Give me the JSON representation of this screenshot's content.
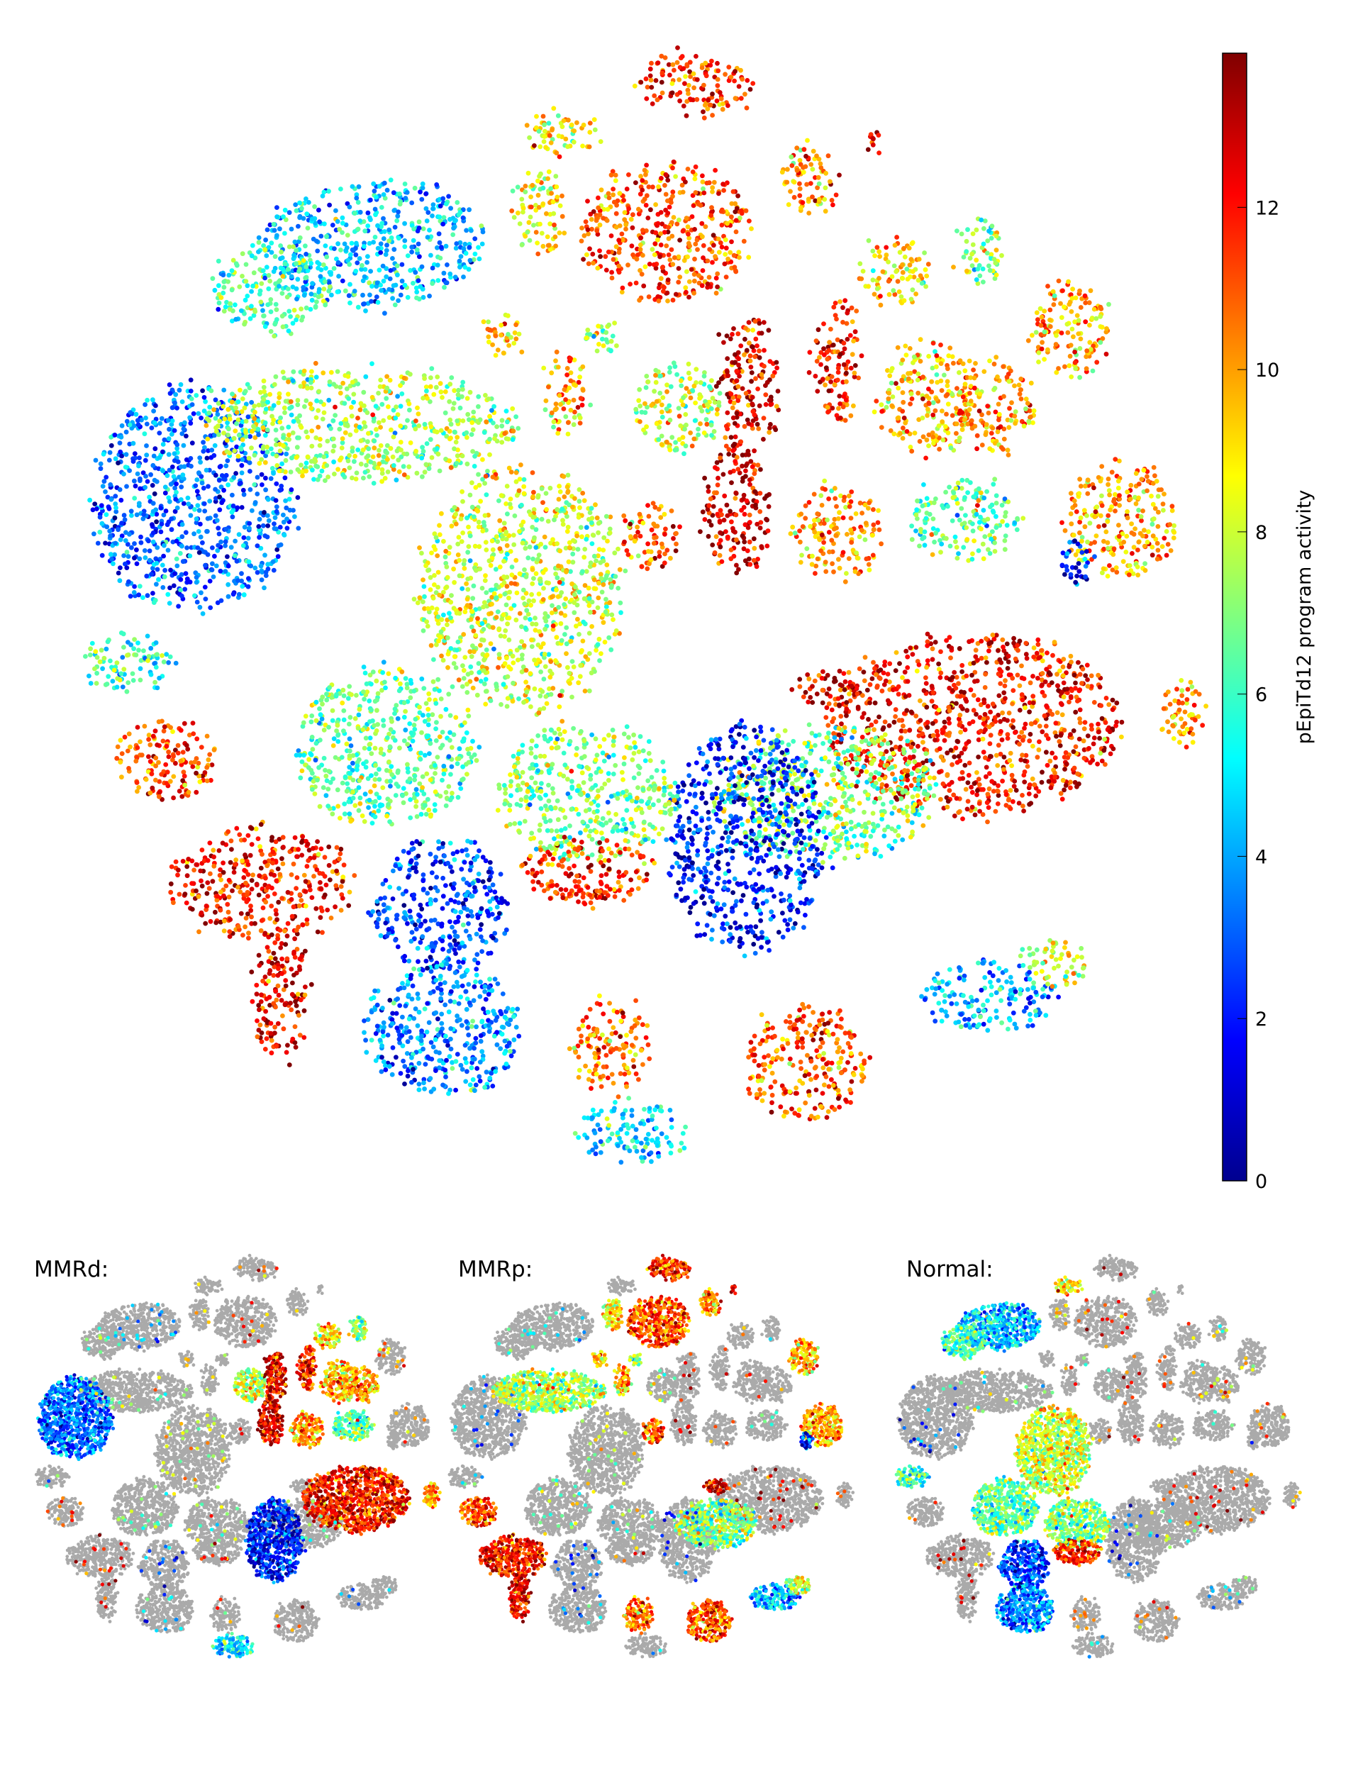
{
  "chart_data": {
    "type": "scatter",
    "title": "",
    "xlabel": "",
    "ylabel": "",
    "axes_visible": false,
    "grid": false,
    "colormap": "jet",
    "colorbar": {
      "label": "pEpiTd12 program activity",
      "range": [
        0,
        13.9
      ],
      "ticks": [
        0,
        2,
        4,
        6,
        8,
        10,
        12
      ],
      "tick_labels": [
        "0",
        "2",
        "4",
        "6",
        "8",
        "10",
        "12"
      ],
      "placement": "right"
    },
    "panels": [
      {
        "title": "MMRd:"
      },
      {
        "title": "MMRp:"
      },
      {
        "title": "Normal:"
      }
    ],
    "background_color": "#aaaaaa"
  }
}
